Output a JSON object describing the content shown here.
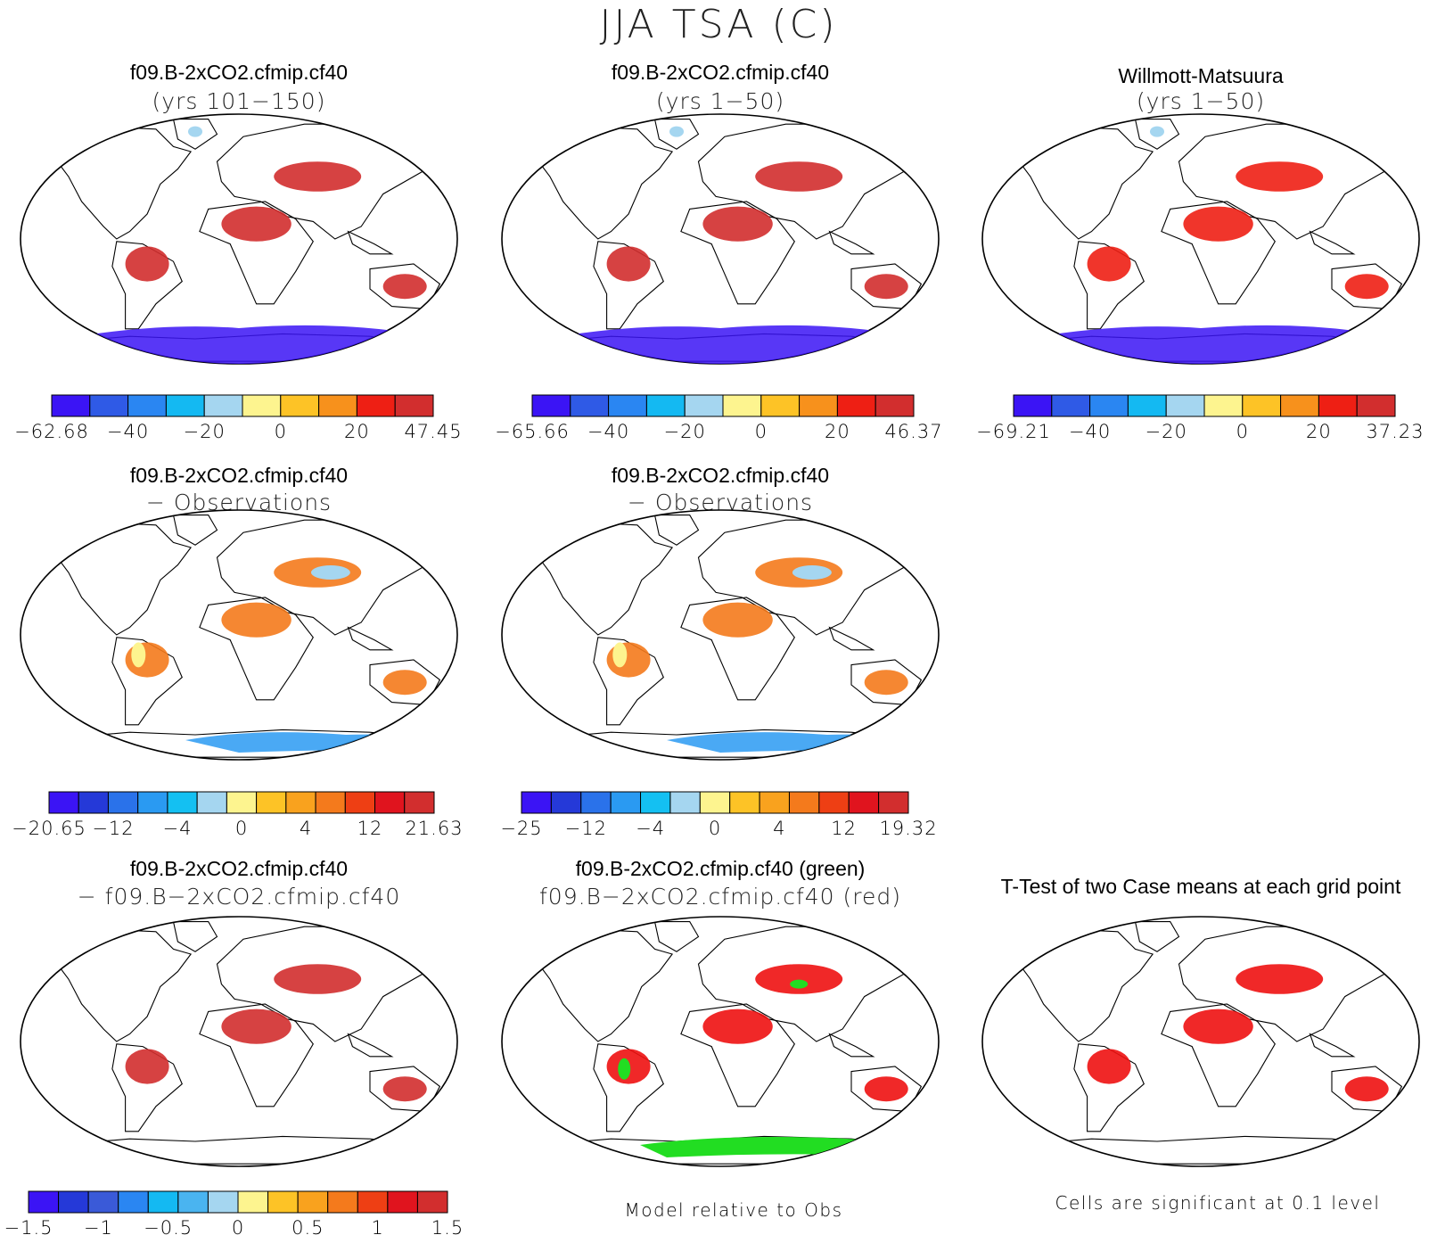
{
  "figure": {
    "title": "JJA TSA (C)",
    "model_relative_note": "Model relative to Obs",
    "significance_note": "Cells are significant at 0.1 level"
  },
  "colors": {
    "absolute_scale": [
      "#3b14f5",
      "#2f5ae6",
      "#2a86f2",
      "#14b9f2",
      "#a5d6f0",
      "#fdf48f",
      "#fdc326",
      "#f7911c",
      "#ee1f14",
      "#d22e2e"
    ],
    "anomaly_scale": [
      "#3b14f5",
      "#2539d8",
      "#2a72ea",
      "#2a9af2",
      "#14c0f2",
      "#a5d6f0",
      "#fdf48f",
      "#fdc326",
      "#f9a21e",
      "#f47a1c",
      "#ee3f14",
      "#e0141e",
      "#d22e2e"
    ],
    "diff_scale": [
      "#3b14f5",
      "#2539d8",
      "#3a5ad8",
      "#2a86f2",
      "#14b9f2",
      "#4ab4f0",
      "#a5d6f0",
      "#fdf48f",
      "#fdc326",
      "#f9a21e",
      "#f47a1c",
      "#ee3f14",
      "#e0141e",
      "#d22e2e"
    ],
    "significance_red": "#ee1111",
    "significance_green": "#22dd22"
  },
  "chart_data": [
    {
      "type": "heatmap",
      "title": "f09.B-2xCO2.cfmip.cf40",
      "subtitle": "(yrs 101−150)",
      "palette": "absolute_scale",
      "field": "abs",
      "colorbar": {
        "min": -62.68,
        "max": 47.45,
        "labels": [
          "−62.68",
          "−40",
          "−20",
          "0",
          "20",
          "47.45"
        ]
      }
    },
    {
      "type": "heatmap",
      "title": "f09.B-2xCO2.cfmip.cf40",
      "subtitle": "(yrs 1−50)",
      "palette": "absolute_scale",
      "field": "abs",
      "colorbar": {
        "min": -65.66,
        "max": 46.37,
        "labels": [
          "−65.66",
          "−40",
          "−20",
          "0",
          "20",
          "46.37"
        ]
      }
    },
    {
      "type": "heatmap",
      "title": "Willmott-Matsuura",
      "subtitle": "(yrs 1−50)",
      "palette": "absolute_scale",
      "field": "obs",
      "colorbar": {
        "min": -69.21,
        "max": 37.23,
        "labels": [
          "−69.21",
          "−40",
          "−20",
          "0",
          "20",
          "37.23"
        ]
      }
    },
    {
      "type": "heatmap",
      "title": "f09.B-2xCO2.cfmip.cf40",
      "subtitle": "− Observations",
      "palette": "anomaly_scale",
      "field": "anom",
      "colorbar": {
        "min": -20.65,
        "max": 21.63,
        "labels": [
          "−20.65",
          "−12",
          "−4",
          "0",
          "4",
          "12",
          "21.63"
        ]
      }
    },
    {
      "type": "heatmap",
      "title": "f09.B-2xCO2.cfmip.cf40",
      "subtitle": "− Observations",
      "palette": "anomaly_scale",
      "field": "anom",
      "colorbar": {
        "min": -25,
        "max": 19.32,
        "labels": [
          "−25",
          "−12",
          "−4",
          "0",
          "4",
          "12",
          "19.32"
        ]
      }
    },
    {
      "type": "heatmap",
      "title": "f09.B-2xCO2.cfmip.cf40",
      "subtitle": "− f09.B−2xCO2.cfmip.cf40",
      "palette": "diff_scale",
      "field": "diff",
      "colorbar": {
        "min": -1.75,
        "max": 1.75,
        "labels": [
          "−1.5",
          "−1",
          "−0.5",
          "0",
          "0.5",
          "1",
          "1.5"
        ]
      }
    },
    {
      "type": "heatmap",
      "title": "f09.B-2xCO2.cfmip.cf40 (green)",
      "subtitle": "f09.B−2xCO2.cfmip.cf40 (red)",
      "field": "compare",
      "legend": {
        "red": "f09.B−2xCO2.cfmip.cf40",
        "green": "f09.B-2xCO2.cfmip.cf40"
      }
    },
    {
      "type": "heatmap",
      "title": "T-Test of two Case means at each grid point",
      "subtitle": "",
      "field": "ttest"
    }
  ]
}
